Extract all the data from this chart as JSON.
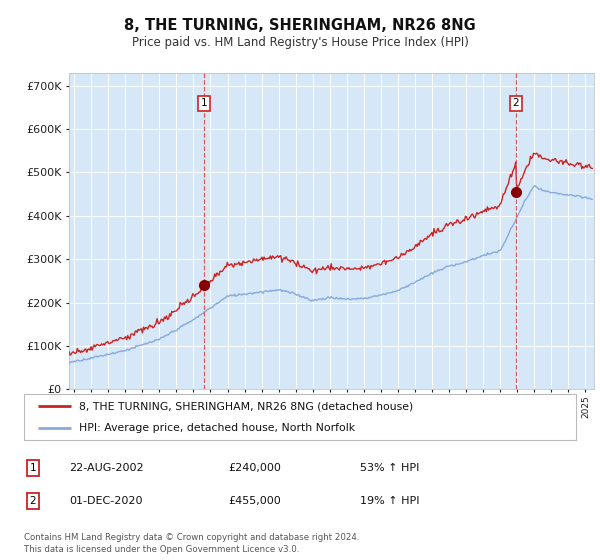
{
  "title": "8, THE TURNING, SHERINGHAM, NR26 8NG",
  "subtitle": "Price paid vs. HM Land Registry's House Price Index (HPI)",
  "background_color": "#d6e8f7",
  "yticks": [
    0,
    100000,
    200000,
    300000,
    400000,
    500000,
    600000,
    700000
  ],
  "ylim": [
    0,
    730000
  ],
  "xlim_start": 1994.7,
  "xlim_end": 2025.5,
  "sale1_t": 2002.64,
  "sale1_p": 240000,
  "sale2_t": 2020.92,
  "sale2_p": 455000,
  "red_line_color": "#cc2222",
  "blue_line_color": "#88aadd",
  "marker_dot_color": "#880000",
  "legend_line1": "8, THE TURNING, SHERINGHAM, NR26 8NG (detached house)",
  "legend_line2": "HPI: Average price, detached house, North Norfolk",
  "footnote": "Contains HM Land Registry data © Crown copyright and database right 2024.\nThis data is licensed under the Open Government Licence v3.0.",
  "table_rows": [
    {
      "num": "1",
      "date": "22-AUG-2002",
      "price": "£240,000",
      "pct": "53% ↑ HPI"
    },
    {
      "num": "2",
      "date": "01-DEC-2020",
      "price": "£455,000",
      "pct": "19% ↑ HPI"
    }
  ]
}
